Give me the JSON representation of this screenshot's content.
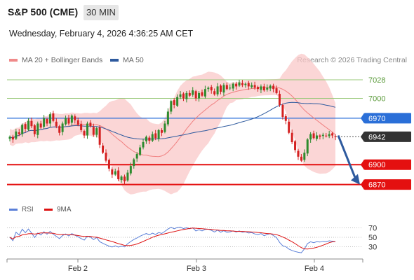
{
  "header": {
    "instrument": "S&P 500 (CME)",
    "timeframe": "30 MIN"
  },
  "datetime": "Wednesday, February 4, 2026 4:36:25 AM CET",
  "legend": {
    "items": [
      {
        "label": "MA 20 + Bollinger Bands",
        "color": "#f08a8a"
      },
      {
        "label": "MA 50",
        "color": "#2e5a9e"
      }
    ],
    "credit": "Research © 2026 Trading Central"
  },
  "rsi_legend": {
    "items": [
      {
        "label": "RSI",
        "color": "#5a7fd8"
      },
      {
        "label": "9MA",
        "color": "#dd1111"
      }
    ]
  },
  "colors": {
    "up": "#2e8b2e",
    "down": "#d42020",
    "ma50": "#2e5a9e",
    "bb": "#f9c8c8",
    "ma20": "#f08080",
    "pivot": "#2a6fd8",
    "resistance": "#98c878",
    "support": "#e41010",
    "current": "#333333",
    "arrow": "#2e5a9e",
    "rsi": "#5a7fd8",
    "rsi_ma": "#dd1111"
  },
  "chart_data": [
    {
      "type": "candlestick",
      "title": "S&P 500 (CME)",
      "timeframe": "30 MIN",
      "x_ticks": [
        "Feb 2",
        "Feb 3",
        "Feb 4"
      ],
      "ylim": [
        6858,
        7048
      ],
      "y_ticks": [
        6870,
        6900,
        6942,
        6970,
        7000,
        7028
      ],
      "levels": [
        {
          "value": 7028,
          "label": "7028",
          "kind": "resistance"
        },
        {
          "value": 7000,
          "label": "7000",
          "kind": "resistance"
        },
        {
          "value": 6970,
          "label": "6970",
          "kind": "pivot"
        },
        {
          "value": 6942,
          "label": "6942",
          "kind": "current"
        },
        {
          "value": 6900,
          "label": "6900",
          "kind": "support"
        },
        {
          "value": 6870,
          "label": "6870",
          "kind": "support"
        }
      ],
      "forecast": {
        "from": 6944,
        "to": 6870,
        "direction": "down"
      },
      "closes": [
        6942,
        6938,
        6950,
        6946,
        6960,
        6954,
        6966,
        6958,
        6946,
        6962,
        6956,
        6970,
        6962,
        6976,
        6966,
        6958,
        6948,
        6962,
        6970,
        6962,
        6974,
        6967,
        6960,
        6952,
        6944,
        6962,
        6958,
        6945,
        6955,
        6930,
        6918,
        6906,
        6894,
        6885,
        6890,
        6878,
        6882,
        6875,
        6888,
        6898,
        6908,
        6916,
        6926,
        6934,
        6942,
        6936,
        6946,
        6940,
        6952,
        6948,
        6962,
        6980,
        6996,
        6990,
        7002,
        7006,
        7000,
        7008,
        7004,
        7012,
        7000,
        7008,
        7004,
        7014,
        7016,
        7012,
        7006,
        7018,
        7010,
        7020,
        7014,
        7016,
        7022,
        7018,
        7024,
        7020,
        7022,
        7018,
        7020,
        7016,
        7014,
        7018,
        7012,
        7016,
        7019,
        7014,
        7008,
        6990,
        6972,
        6966,
        6948,
        6934,
        6922,
        6912,
        6906,
        6918,
        6938,
        6946,
        6940,
        6944,
        6942,
        6945,
        6943,
        6946,
        6944,
        6942
      ]
    },
    {
      "type": "line",
      "title": "RSI",
      "series": [
        {
          "name": "RSI"
        },
        {
          "name": "9MA"
        }
      ],
      "y_ticks": [
        30,
        50,
        70
      ],
      "ylim": [
        10,
        90
      ]
    }
  ]
}
